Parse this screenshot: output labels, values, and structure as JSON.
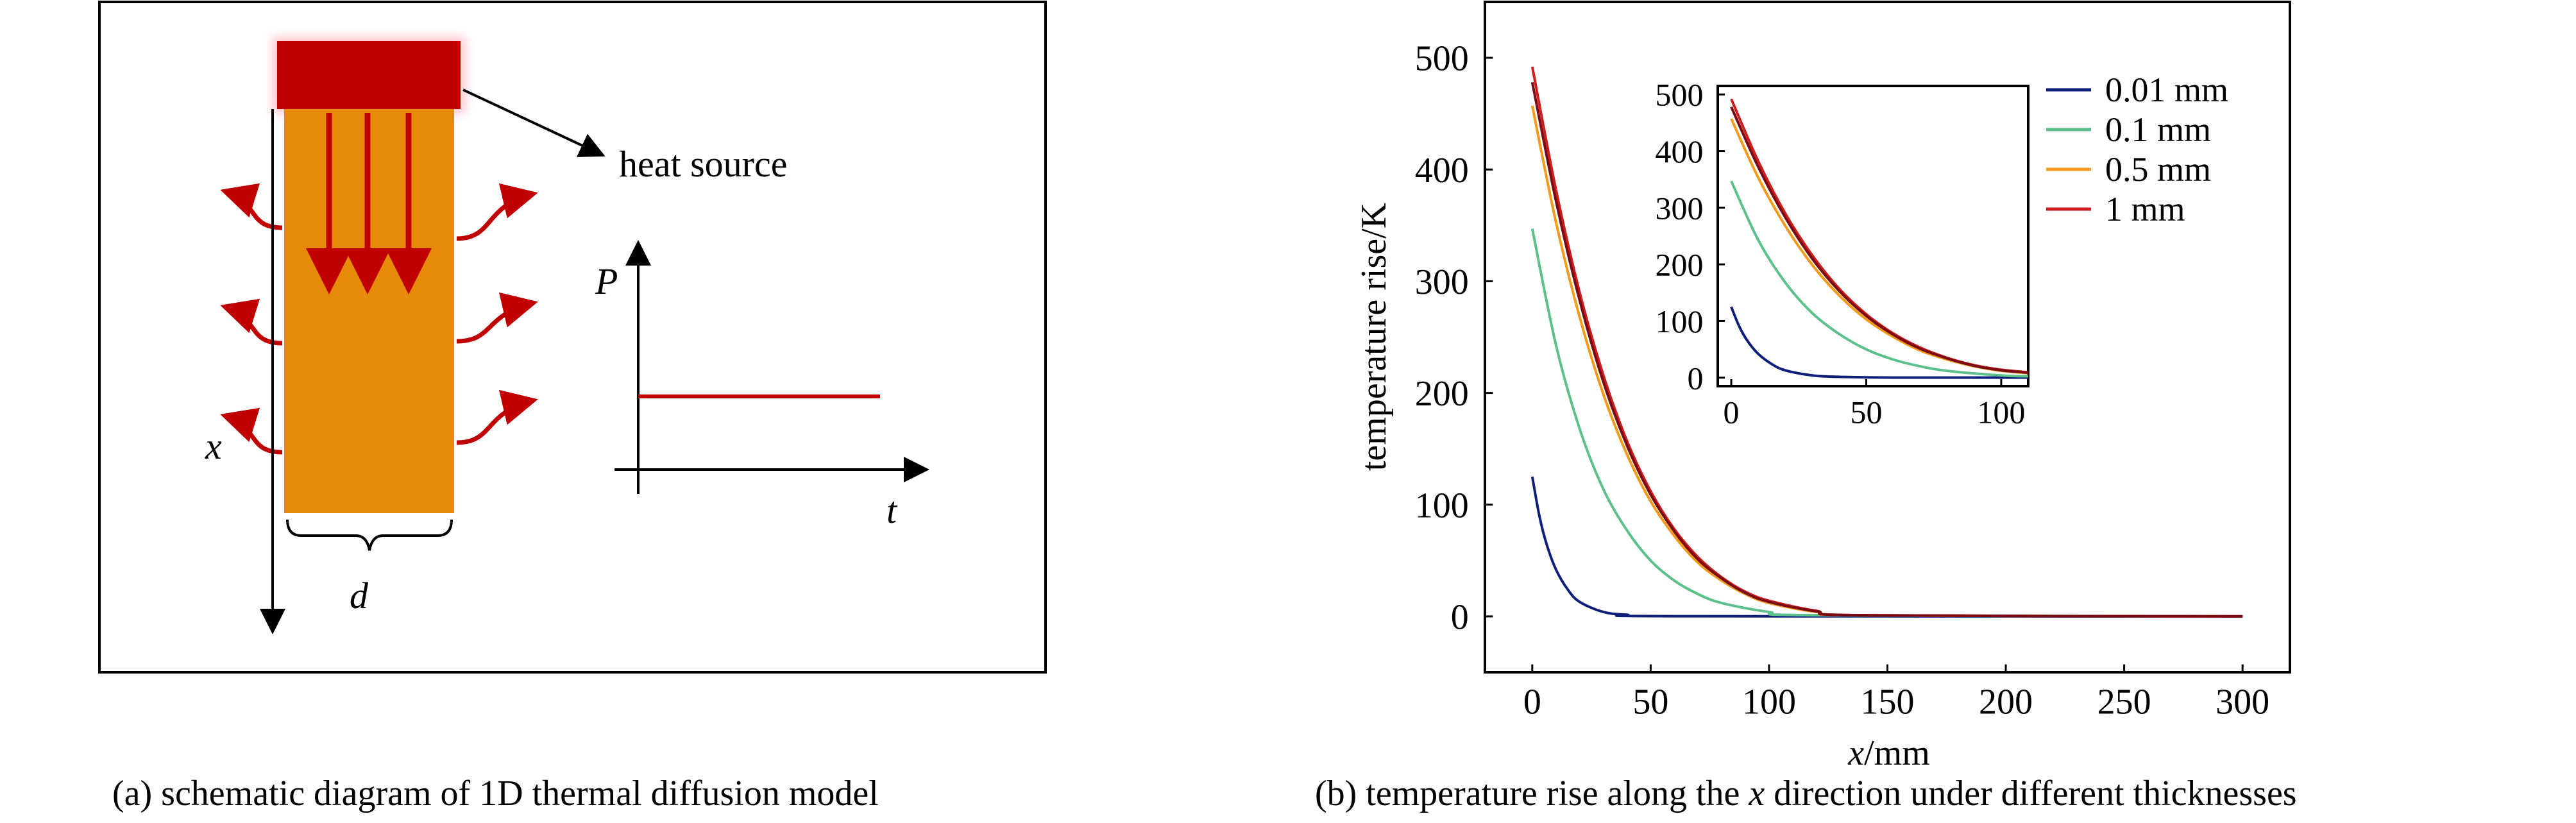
{
  "panel_a": {
    "caption": "(a) schematic diagram of 1D thermal diffusion model",
    "heat_source_label": "heat source",
    "x_label": "x",
    "d_label": "d",
    "p_label": "P",
    "t_label": "t",
    "colors": {
      "heat_source": "#c00000",
      "slab": "#e68a0a",
      "arrows": "#c00000",
      "power_line": "#c00000"
    }
  },
  "panel_b": {
    "caption_prefix": "(b) temperature rise along the ",
    "caption_var": "x",
    "caption_suffix": " direction under different thicknesses"
  },
  "chart_data": {
    "type": "line",
    "xlabel_var": "x",
    "xlabel_unit": "/mm",
    "ylabel": "temperature rise/K",
    "xlim": [
      -20,
      320
    ],
    "ylim": [
      -50,
      550
    ],
    "xticks": [
      0,
      50,
      100,
      150,
      200,
      250,
      300
    ],
    "yticks": [
      0,
      100,
      200,
      300,
      400,
      500
    ],
    "legend_position": "top-right",
    "grid": false,
    "series": [
      {
        "name": "0.01 mm",
        "color": "#0d1f7a",
        "x": [
          0,
          3,
          6,
          10,
          15,
          20,
          30,
          40,
          60,
          300
        ],
        "y": [
          125,
          90,
          65,
          42,
          24,
          13,
          4,
          1.5,
          0.2,
          0
        ]
      },
      {
        "name": "0.1 mm",
        "color": "#5cc08a",
        "x": [
          0,
          10,
          20,
          30,
          40,
          50,
          60,
          70,
          80,
          100,
          120,
          300
        ],
        "y": [
          347,
          243,
          168,
          114,
          77,
          50,
          32,
          20,
          12,
          4,
          1,
          0
        ]
      },
      {
        "name": "0.5 mm",
        "color": "#f39a1b",
        "x": [
          0,
          10,
          20,
          30,
          40,
          50,
          60,
          70,
          80,
          90,
          100,
          120,
          140,
          300
        ],
        "y": [
          457,
          353,
          268,
          199,
          145,
          103,
          72,
          48,
          32,
          20,
          12,
          4,
          1,
          0
        ]
      },
      {
        "name": "1 mm",
        "color": "#d01c1c",
        "x": [
          0,
          10,
          20,
          30,
          40,
          50,
          60,
          70,
          80,
          90,
          100,
          120,
          140,
          300
        ],
        "y": [
          492,
          382,
          290,
          216,
          157,
          112,
          78,
          53,
          35,
          22,
          14,
          5,
          1,
          0
        ]
      },
      {
        "name": "",
        "color": "#7a0a14",
        "x": [
          0,
          10,
          20,
          30,
          40,
          50,
          60,
          70,
          80,
          90,
          100,
          120,
          140,
          300
        ],
        "y": [
          478,
          372,
          283,
          210,
          153,
          109,
          76,
          51,
          34,
          21,
          13,
          4.5,
          1,
          0
        ]
      }
    ],
    "inset": {
      "xlim": [
        -5,
        110
      ],
      "ylim": [
        -15,
        515
      ],
      "xticks": [
        0,
        50,
        100
      ],
      "yticks": [
        0,
        100,
        200,
        300,
        400,
        500
      ]
    }
  }
}
